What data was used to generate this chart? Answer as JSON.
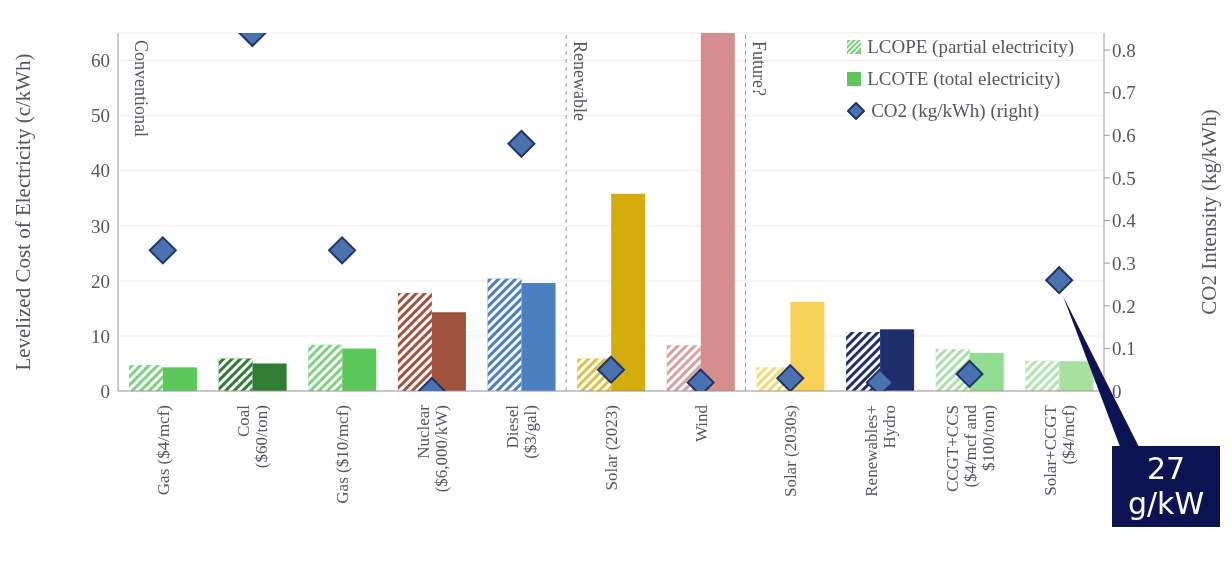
{
  "chart_data": {
    "type": "bar",
    "categories": [
      "Gas ($4/mcf)",
      "Coal ($60/ton)",
      "Gas ($10/mcf)",
      "Nuclear ($6,000/kW)",
      "Diesel ($3/gal)",
      "Solar (2023)",
      "Wind",
      "Solar (2030s)",
      "Renewables+ Hydro",
      "CCGT+CCS ($4/mcf and $100/ton)",
      "Solar+CCGT ($4/mcf)"
    ],
    "series": [
      {
        "name": "LCOPE (partial electricity)",
        "color": "#7fd07f",
        "colors": [
          "#7fd07f",
          "#2e7d32",
          "#7fd07f",
          "#a0523f",
          "#4a7fc0",
          "#e0c040",
          "#d9a0a0",
          "#f5d870",
          "#1f2f6e",
          "#a8e2a8",
          "#b0e4b0"
        ],
        "values": [
          4.7,
          5.9,
          8.4,
          17.8,
          20.4,
          5.9,
          8.3,
          4.3,
          10.7,
          7.6,
          5.5
        ]
      },
      {
        "name": "LCOTE (total electricity)",
        "color": "#5cc85c",
        "colors": [
          "#5cc85c",
          "#2e7d32",
          "#5cc85c",
          "#a0523f",
          "#4a7fc0",
          "#d4ac0d",
          "#d48e8e",
          "#f7d155",
          "#1f2f6e",
          "#90dc90",
          "#a8e0a0"
        ],
        "values": [
          4.3,
          5.0,
          7.7,
          14.3,
          19.6,
          35.8,
          65,
          16.2,
          11.2,
          6.9,
          5.4
        ]
      },
      {
        "name": "CO2 (kg/kWh) (right)",
        "type": "scatter",
        "axis": "y2",
        "color": "#4a72b0",
        "values": [
          0.33,
          0.84,
          0.33,
          0.0,
          0.58,
          0.05,
          0.02,
          0.03,
          0.02,
          0.04,
          0.26
        ]
      }
    ],
    "ylabel": "Levelized Cost of Electricity (c/kWh)",
    "y2label": "CO2 Intensity (kg/kWh)",
    "ylim": [
      0,
      65
    ],
    "yticks": [
      0,
      10,
      20,
      30,
      40,
      50,
      60
    ],
    "y2lim": [
      0,
      0.84
    ],
    "y2ticks": [
      0,
      0.1,
      0.2,
      0.3,
      0.4,
      0.5,
      0.6,
      0.7,
      0.8
    ],
    "annotations": [
      "Conventional",
      "Renewable",
      "Future?",
      "27 g/kW"
    ],
    "grid": "y",
    "legend": "top right",
    "marker": "diamond"
  }
}
